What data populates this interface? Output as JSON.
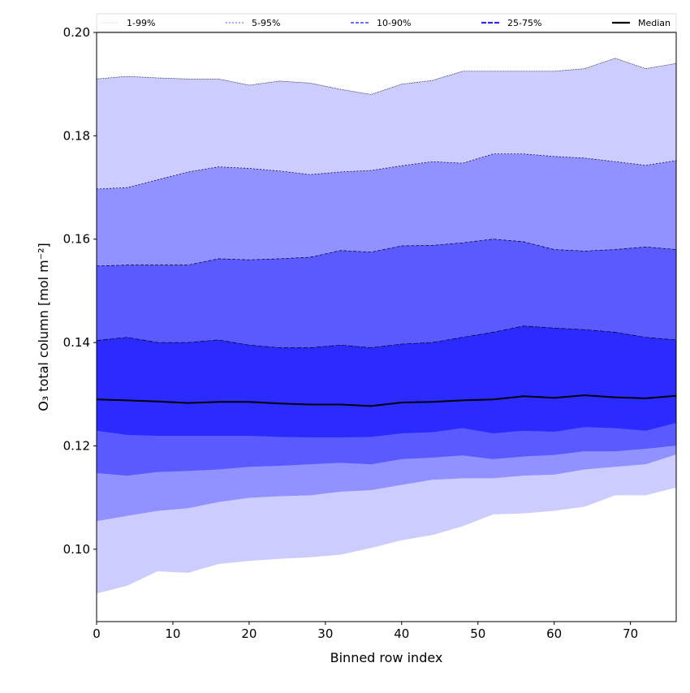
{
  "chart_data": {
    "type": "area",
    "xlabel": "Binned row index",
    "ylabel": "O₃ total column [mol m⁻²]",
    "xlim": [
      0,
      76
    ],
    "ylim": [
      0.086,
      0.2
    ],
    "xticks": [
      "0",
      "10",
      "20",
      "30",
      "40",
      "50",
      "60",
      "70"
    ],
    "yticks": [
      "0.10",
      "0.12",
      "0.14",
      "0.16",
      "0.18",
      "0.20"
    ],
    "legend_position": "top (above axes)",
    "x": [
      0,
      4,
      8,
      12,
      16,
      20,
      24,
      28,
      32,
      36,
      40,
      44,
      48,
      52,
      56,
      60,
      64,
      68,
      72,
      76
    ],
    "bands": [
      {
        "name": "1-99%",
        "color": "#ccccff",
        "lower": [
          0.0915,
          0.093,
          0.0958,
          0.0955,
          0.0972,
          0.0978,
          0.0982,
          0.0985,
          0.099,
          0.1003,
          0.1018,
          0.1028,
          0.1045,
          0.1068,
          0.107,
          0.1075,
          0.1083,
          0.1105,
          0.1105,
          0.112
        ],
        "upper": [
          0.191,
          0.1915,
          0.1912,
          0.191,
          0.191,
          0.1898,
          0.1906,
          0.1902,
          0.189,
          0.188,
          0.19,
          0.1907,
          0.1925,
          0.1925,
          0.1925,
          0.1925,
          0.193,
          0.195,
          0.193,
          0.194
        ]
      },
      {
        "name": "5-95%",
        "color": "#9191ff",
        "lower": [
          0.1055,
          0.1065,
          0.1075,
          0.108,
          0.1092,
          0.11,
          0.1103,
          0.1105,
          0.1112,
          0.1115,
          0.1125,
          0.1135,
          0.1138,
          0.1138,
          0.1143,
          0.1145,
          0.1155,
          0.116,
          0.1165,
          0.1184
        ],
        "upper": [
          0.1697,
          0.17,
          0.1715,
          0.173,
          0.174,
          0.1737,
          0.1732,
          0.1725,
          0.173,
          0.1733,
          0.1742,
          0.175,
          0.1747,
          0.1765,
          0.1765,
          0.176,
          0.1757,
          0.175,
          0.1743,
          0.1752
        ]
      },
      {
        "name": "10-90%",
        "color": "#5a5aff",
        "lower": [
          0.1148,
          0.1143,
          0.115,
          0.1152,
          0.1155,
          0.116,
          0.1162,
          0.1165,
          0.1168,
          0.1165,
          0.1175,
          0.1178,
          0.1182,
          0.1175,
          0.118,
          0.1183,
          0.119,
          0.119,
          0.1195,
          0.1201
        ],
        "upper": [
          0.1548,
          0.155,
          0.155,
          0.155,
          0.1562,
          0.156,
          0.1562,
          0.1565,
          0.1578,
          0.1575,
          0.1587,
          0.1588,
          0.1593,
          0.16,
          0.1595,
          0.158,
          0.1577,
          0.158,
          0.1585,
          0.158
        ]
      },
      {
        "name": "25-75%",
        "color": "#2b2bff",
        "lower": [
          0.123,
          0.1222,
          0.122,
          0.122,
          0.122,
          0.122,
          0.1218,
          0.1217,
          0.1217,
          0.1218,
          0.1225,
          0.1227,
          0.1235,
          0.1225,
          0.123,
          0.1228,
          0.1237,
          0.1235,
          0.123,
          0.1245
        ],
        "upper": [
          0.1404,
          0.141,
          0.14,
          0.14,
          0.1405,
          0.1395,
          0.139,
          0.139,
          0.1395,
          0.139,
          0.1397,
          0.14,
          0.141,
          0.142,
          0.1432,
          0.1428,
          0.1425,
          0.142,
          0.141,
          0.1405
        ]
      }
    ],
    "median": {
      "name": "Median",
      "color": "#000000",
      "values": [
        0.129,
        0.1288,
        0.1286,
        0.1283,
        0.1285,
        0.1285,
        0.1282,
        0.128,
        0.128,
        0.1277,
        0.1284,
        0.1285,
        0.1288,
        0.129,
        0.1296,
        0.1293,
        0.1298,
        0.1294,
        0.1292,
        0.1297
      ]
    }
  }
}
